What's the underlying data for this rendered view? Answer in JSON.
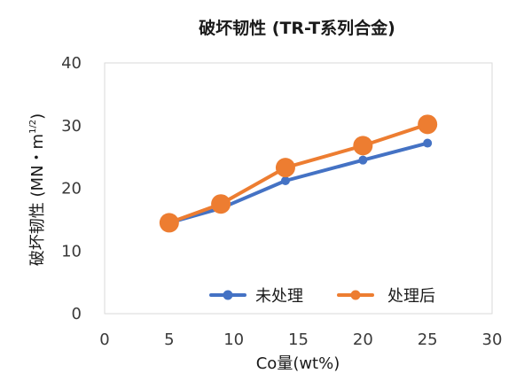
{
  "chart_data": {
    "type": "line",
    "title": "破坏韧性 (TR-T系列合金)",
    "xlabel": "Co量(wt%)",
    "ylabel": "破坏韧性 (MN・m",
    "ylabel_exponent": "1/2",
    "ylabel_suffix": ")",
    "xlim": [
      0,
      30
    ],
    "ylim": [
      0,
      40
    ],
    "xticks": [
      0,
      5,
      10,
      15,
      20,
      25,
      30
    ],
    "yticks": [
      0,
      10,
      20,
      30,
      40
    ],
    "grid": false,
    "legend_position": "bottom-right",
    "series": [
      {
        "name": "未处理",
        "color": "#4472C4",
        "x": [
          5,
          9,
          14,
          20,
          25
        ],
        "y": [
          14.5,
          16.8,
          21.2,
          24.5,
          27.2
        ]
      },
      {
        "name": "处理后",
        "color": "#ED7D31",
        "x": [
          5,
          9,
          14,
          20,
          25
        ],
        "y": [
          14.5,
          17.5,
          23.3,
          26.8,
          30.2
        ]
      }
    ]
  }
}
